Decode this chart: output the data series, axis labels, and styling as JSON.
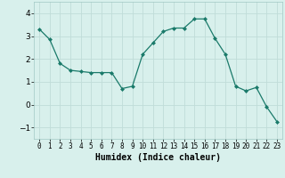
{
  "x": [
    0,
    1,
    2,
    3,
    4,
    5,
    6,
    7,
    8,
    9,
    10,
    11,
    12,
    13,
    14,
    15,
    16,
    17,
    18,
    19,
    20,
    21,
    22,
    23
  ],
  "y": [
    3.3,
    2.85,
    1.8,
    1.5,
    1.45,
    1.4,
    1.4,
    1.4,
    0.7,
    0.8,
    2.2,
    2.7,
    3.2,
    3.35,
    3.35,
    3.75,
    3.75,
    2.9,
    2.2,
    0.8,
    0.6,
    0.75,
    -0.1,
    -0.75
  ],
  "line_color": "#1a7a6a",
  "marker": "D",
  "marker_size": 2,
  "bg_color": "#d8f0ec",
  "grid_color": "#c0dcd8",
  "xlabel": "Humidex (Indice chaleur)",
  "xlabel_fontsize": 7,
  "xtick_labels": [
    "0",
    "1",
    "2",
    "3",
    "4",
    "5",
    "6",
    "7",
    "8",
    "9",
    "10",
    "11",
    "12",
    "13",
    "14",
    "15",
    "16",
    "17",
    "18",
    "19",
    "20",
    "21",
    "22",
    "23"
  ],
  "ylim": [
    -1.5,
    4.5
  ],
  "yticks": [
    -1,
    0,
    1,
    2,
    3,
    4
  ],
  "xlim": [
    -0.5,
    23.5
  ]
}
